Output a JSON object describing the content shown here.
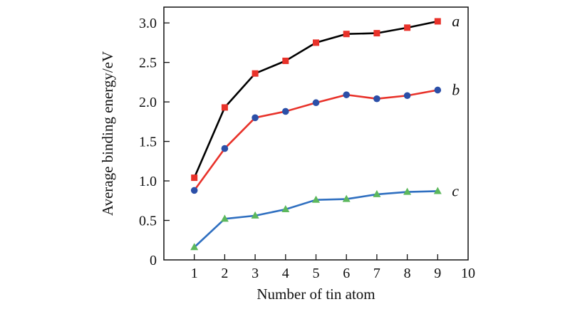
{
  "chart_data": {
    "type": "line",
    "title": "",
    "xlabel": "Number of tin atom",
    "ylabel": "Average binding energy/eV",
    "xlim": [
      0,
      10
    ],
    "ylim": [
      0,
      3.2
    ],
    "x_ticks": [
      1,
      2,
      3,
      4,
      5,
      6,
      7,
      8,
      9,
      10
    ],
    "y_ticks": [
      0,
      0.5,
      1.0,
      1.5,
      2.0,
      2.5,
      3.0
    ],
    "y_tick_labels": [
      "0",
      "0.5",
      "1.0",
      "1.5",
      "2.0",
      "2.5",
      "3.0"
    ],
    "grid": false,
    "legend": "inline labels at right end of each line",
    "x": [
      1,
      2,
      3,
      4,
      5,
      6,
      7,
      8,
      9
    ],
    "series": [
      {
        "name": "a",
        "values": [
          1.04,
          1.93,
          2.36,
          2.52,
          2.75,
          2.86,
          2.87,
          2.94,
          3.02
        ],
        "line_color": "#000000",
        "marker": "square",
        "marker_color": "#e8322a"
      },
      {
        "name": "b",
        "values": [
          0.88,
          1.41,
          1.8,
          1.88,
          1.99,
          2.09,
          2.04,
          2.08,
          2.15
        ],
        "line_color": "#e8322a",
        "marker": "circle",
        "marker_color": "#2b4fa8"
      },
      {
        "name": "c",
        "values": [
          0.16,
          0.52,
          0.56,
          0.64,
          0.76,
          0.77,
          0.83,
          0.86,
          0.87
        ],
        "line_color": "#2f6fc0",
        "marker": "triangle",
        "marker_color": "#5cb85c"
      }
    ]
  }
}
